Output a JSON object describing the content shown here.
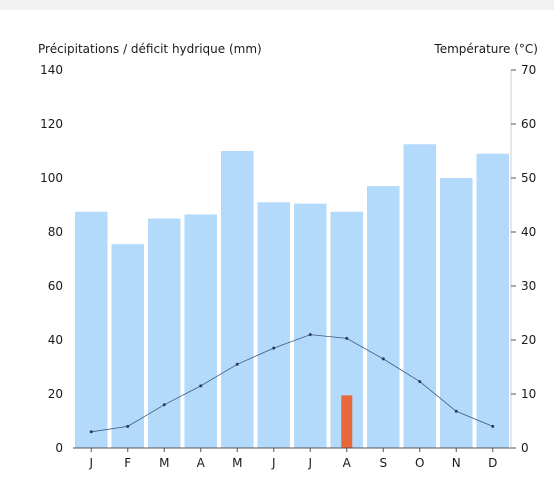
{
  "chart_data": {
    "type": "bar",
    "left_axis_label": "Précipitations / déficit hydrique (mm)",
    "right_axis_label": "Température (°C)",
    "categories": [
      "J",
      "F",
      "M",
      "A",
      "M",
      "J",
      "J",
      "A",
      "S",
      "O",
      "N",
      "D"
    ],
    "ylim_left": [
      0,
      140
    ],
    "ylim_right": [
      0,
      70
    ],
    "left_ticks": [
      0,
      20,
      40,
      60,
      80,
      100,
      120,
      140
    ],
    "right_ticks": [
      0,
      10,
      20,
      30,
      40,
      50,
      60,
      70
    ],
    "grid": false,
    "series": [
      {
        "kind": "bar",
        "axis": "left",
        "color": "#b3d9fb",
        "values": [
          87.5,
          75.5,
          85,
          86.5,
          110,
          91,
          90.5,
          87.5,
          97,
          112.5,
          100,
          109
        ]
      },
      {
        "kind": "bar",
        "axis": "left",
        "color": "#e8683a",
        "values": [
          0,
          0,
          0,
          0,
          0,
          0,
          0,
          19.5,
          0,
          0,
          0,
          0
        ]
      },
      {
        "kind": "line",
        "axis": "right",
        "color": "#3d5a80",
        "values": [
          3,
          4,
          8,
          11.5,
          15.5,
          18.5,
          21,
          20.3,
          16.5,
          12.3,
          6.8,
          4
        ]
      }
    ]
  }
}
